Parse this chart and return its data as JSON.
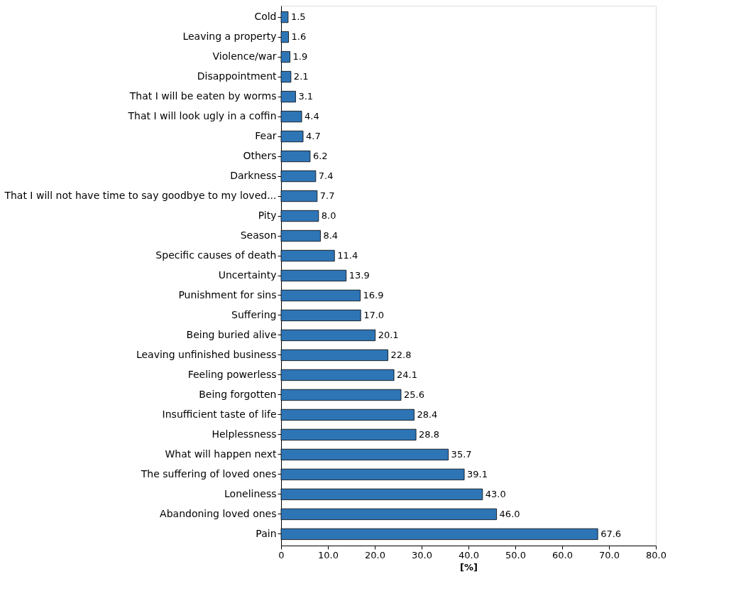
{
  "chart_data": {
    "type": "bar",
    "orientation": "horizontal",
    "xlabel": "[%]",
    "categories": [
      "Cold",
      "Leaving a property",
      "Violence/war",
      "Disappointment",
      "That I will be eaten by worms",
      "That I will look ugly in a coffin",
      "Fear",
      "Others",
      "Darkness",
      "That I will not have time to say goodbye to my loved...",
      "Pity",
      "Season",
      "Specific causes of death",
      "Uncertainty",
      "Punishment for sins",
      "Suffering",
      "Being buried alive",
      "Leaving unfinished business",
      "Feeling powerless",
      "Being forgotten",
      "Insufficient taste of life",
      "Helplessness",
      "What will happen next",
      "The suffering of loved ones",
      "Loneliness",
      "Abandoning loved ones",
      "Pain"
    ],
    "values": [
      1.5,
      1.6,
      1.9,
      2.1,
      3.1,
      4.4,
      4.7,
      6.2,
      7.4,
      7.7,
      8.0,
      8.4,
      11.4,
      13.9,
      16.9,
      17.0,
      20.1,
      22.8,
      24.1,
      25.6,
      28.4,
      28.8,
      35.7,
      39.1,
      43.0,
      46.0,
      67.6
    ],
    "value_labels": [
      "1.5",
      "1.6",
      "1.9",
      "2.1",
      "3.1",
      "4.4",
      "4.7",
      "6.2",
      "7.4",
      "7.7",
      "8.0",
      "8.4",
      "11.4",
      "13.9",
      "16.9",
      "17.0",
      "20.1",
      "22.8",
      "24.1",
      "25.6",
      "28.4",
      "28.8",
      "35.7",
      "39.1",
      "43.0",
      "46.0",
      "67.6"
    ],
    "color": "#2e75b6",
    "xlim": [
      0,
      80
    ],
    "xticks": [
      0,
      {
        "value": 10,
        "label": "10.0"
      },
      {
        "value": 20,
        "label": "20.0"
      },
      {
        "value": 30,
        "label": "30.0"
      },
      {
        "value": 40,
        "label": "40.0"
      },
      {
        "value": 50,
        "label": "50.0"
      },
      {
        "value": 60,
        "label": "60.0"
      },
      {
        "value": 70,
        "label": "70.0"
      },
      {
        "value": 80,
        "label": "80.0"
      }
    ],
    "grid": false
  }
}
